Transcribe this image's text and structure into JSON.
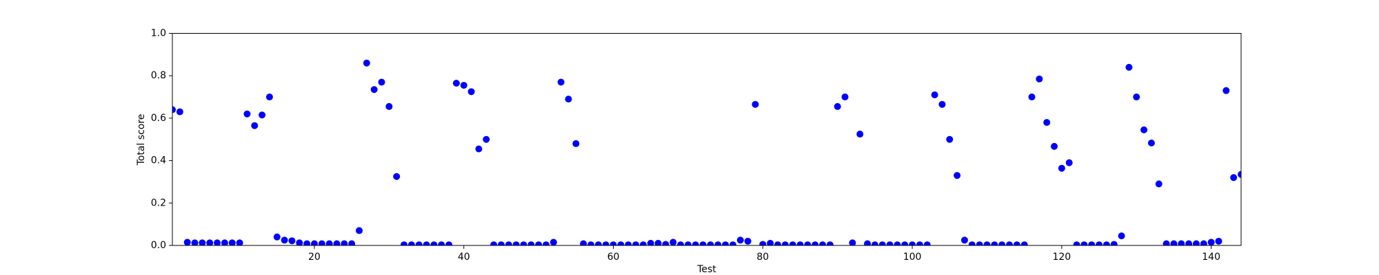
{
  "chart_data": {
    "type": "scatter",
    "xlabel": "Test",
    "ylabel": "Total score",
    "color": "#0000ff",
    "x": [
      1,
      2,
      3,
      4,
      5,
      6,
      7,
      8,
      9,
      10,
      11,
      12,
      13,
      14,
      15,
      16,
      17,
      18,
      19,
      20,
      21,
      22,
      23,
      24,
      25,
      26,
      27,
      28,
      29,
      30,
      31,
      32,
      33,
      34,
      35,
      36,
      37,
      38,
      39,
      40,
      41,
      42,
      43,
      44,
      45,
      46,
      47,
      48,
      49,
      50,
      51,
      52,
      53,
      54,
      55,
      56,
      57,
      58,
      59,
      60,
      61,
      62,
      63,
      64,
      65,
      66,
      67,
      68,
      69,
      70,
      71,
      72,
      73,
      74,
      75,
      76,
      77,
      78,
      79,
      80,
      81,
      82,
      83,
      84,
      85,
      86,
      87,
      88,
      89,
      90,
      91,
      92,
      93,
      94,
      95,
      96,
      97,
      98,
      99,
      100,
      101,
      102,
      103,
      104,
      105,
      106,
      107,
      108,
      109,
      110,
      111,
      112,
      113,
      114,
      115,
      116,
      117,
      118,
      119,
      120,
      121,
      122,
      123,
      124,
      125,
      126,
      127,
      128,
      129,
      130,
      131,
      132,
      133,
      134,
      135,
      136,
      137,
      138,
      139,
      140,
      141,
      142,
      143,
      144
    ],
    "values": [
      0.64,
      0.63,
      0.015,
      0.012,
      0.012,
      0.012,
      0.012,
      0.012,
      0.012,
      0.012,
      0.62,
      0.565,
      0.615,
      0.7,
      0.04,
      0.025,
      0.022,
      0.012,
      0.008,
      0.008,
      0.008,
      0.008,
      0.008,
      0.008,
      0.008,
      0.07,
      0.86,
      0.735,
      0.77,
      0.655,
      0.325,
      0.003,
      0.003,
      0.003,
      0.003,
      0.003,
      0.003,
      0.003,
      0.765,
      0.755,
      0.725,
      0.455,
      0.5,
      0.003,
      0.003,
      0.003,
      0.003,
      0.003,
      0.003,
      0.003,
      0.003,
      0.015,
      0.77,
      0.69,
      0.48,
      0.008,
      0.003,
      0.003,
      0.003,
      0.003,
      0.003,
      0.003,
      0.003,
      0.003,
      0.01,
      0.01,
      0.005,
      0.015,
      0.003,
      0.003,
      0.003,
      0.003,
      0.003,
      0.003,
      0.003,
      0.003,
      0.025,
      0.02,
      0.665,
      0.005,
      0.01,
      0.003,
      0.003,
      0.003,
      0.003,
      0.003,
      0.003,
      0.003,
      0.003,
      0.655,
      0.7,
      0.012,
      0.525,
      0.008,
      0.003,
      0.003,
      0.003,
      0.003,
      0.003,
      0.003,
      0.003,
      0.003,
      0.71,
      0.665,
      0.5,
      0.33,
      0.025,
      0.003,
      0.003,
      0.003,
      0.003,
      0.003,
      0.003,
      0.003,
      0.003,
      0.7,
      0.785,
      0.58,
      0.467,
      0.364,
      0.39,
      0.003,
      0.003,
      0.003,
      0.003,
      0.003,
      0.005,
      0.045,
      0.84,
      0.7,
      0.545,
      0.483,
      0.29,
      0.008,
      0.008,
      0.008,
      0.008,
      0.008,
      0.008,
      0.015,
      0.02,
      0.73,
      0.32,
      0.335
    ],
    "xlim": [
      1,
      144
    ],
    "ylim": [
      0,
      1
    ],
    "xticks": [
      20,
      40,
      60,
      80,
      100,
      120,
      140
    ],
    "yticks": [
      {
        "value": 0,
        "label": "0.0"
      },
      0.2,
      0.4,
      0.6,
      0.8,
      {
        "value": 1,
        "label": "1.0"
      }
    ]
  }
}
